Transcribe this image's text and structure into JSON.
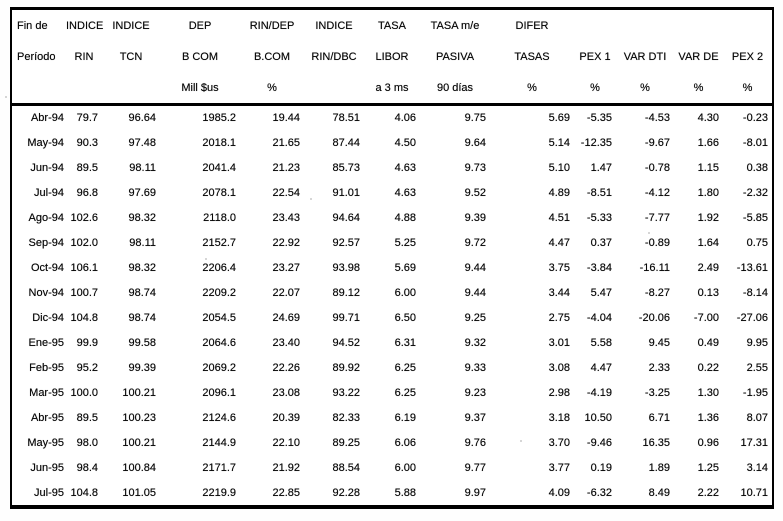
{
  "table": {
    "header": {
      "columns": [
        {
          "l1": "Fin de",
          "l2": "Período",
          "l3": ""
        },
        {
          "l1": "INDICE",
          "l2": "RIN",
          "l3": ""
        },
        {
          "l1": "INDICE",
          "l2": "TCN",
          "l3": ""
        },
        {
          "l1": "DEP",
          "l2": "B COM",
          "l3": "Mill $us"
        },
        {
          "l1": "RIN/DEP",
          "l2": "B.COM",
          "l3": "%"
        },
        {
          "l1": "INDICE",
          "l2": "RIN/DBC",
          "l3": ""
        },
        {
          "l1": "TASA",
          "l2": "LIBOR",
          "l3": "a 3 ms"
        },
        {
          "l1": "TASA m/e",
          "l2": "PASIVA",
          "l3": "90 días"
        },
        {
          "l1": "DIFER",
          "l2": "TASAS",
          "l3": "%"
        },
        {
          "l1": "",
          "l2": "PEX 1",
          "l3": "%"
        },
        {
          "l1": "",
          "l2": "VAR DTI",
          "l3": "%"
        },
        {
          "l1": "",
          "l2": "VAR DE",
          "l3": "%"
        },
        {
          "l1": "",
          "l2": "PEX 2",
          "l3": "%"
        }
      ]
    },
    "rows": [
      {
        "period": "Abr-94",
        "values": [
          "79.7",
          "96.64",
          "1985.2",
          "19.44",
          "78.51",
          "4.06",
          "9.75",
          "5.69",
          "-5.35",
          "-4.53",
          "4.30",
          "-0.23"
        ]
      },
      {
        "period": "May-94",
        "values": [
          "90.3",
          "97.48",
          "2018.1",
          "21.65",
          "87.44",
          "4.50",
          "9.64",
          "5.14",
          "-12.35",
          "-9.67",
          "1.66",
          "-8.01"
        ]
      },
      {
        "period": "Jun-94",
        "values": [
          "89.5",
          "98.11",
          "2041.4",
          "21.23",
          "85.73",
          "4.63",
          "9.73",
          "5.10",
          "1.47",
          "-0.78",
          "1.15",
          "0.38"
        ]
      },
      {
        "period": "Jul-94",
        "values": [
          "96.8",
          "97.69",
          "2078.1",
          "22.54",
          "91.01",
          "4.63",
          "9.52",
          "4.89",
          "-8.51",
          "-4.12",
          "1.80",
          "-2.32"
        ]
      },
      {
        "period": "Ago-94",
        "values": [
          "102.6",
          "98.32",
          "2118.0",
          "23.43",
          "94.64",
          "4.88",
          "9.39",
          "4.51",
          "-5.33",
          "-7.77",
          "1.92",
          "-5.85"
        ]
      },
      {
        "period": "Sep-94",
        "values": [
          "102.0",
          "98.11",
          "2152.7",
          "22.92",
          "92.57",
          "5.25",
          "9.72",
          "4.47",
          "0.37",
          "-0.89",
          "1.64",
          "0.75"
        ]
      },
      {
        "period": "Oct-94",
        "values": [
          "106.1",
          "98.32",
          "2206.4",
          "23.27",
          "93.98",
          "5.69",
          "9.44",
          "3.75",
          "-3.84",
          "-16.11",
          "2.49",
          "-13.61"
        ]
      },
      {
        "period": "Nov-94",
        "values": [
          "100.7",
          "98.74",
          "2209.2",
          "22.07",
          "89.12",
          "6.00",
          "9.44",
          "3.44",
          "5.47",
          "-8.27",
          "0.13",
          "-8.14"
        ]
      },
      {
        "period": "Dic-94",
        "values": [
          "104.8",
          "98.74",
          "2054.5",
          "24.69",
          "99.71",
          "6.50",
          "9.25",
          "2.75",
          "-4.04",
          "-20.06",
          "-7.00",
          "-27.06"
        ]
      },
      {
        "period": "Ene-95",
        "values": [
          "99.9",
          "99.58",
          "2064.6",
          "23.40",
          "94.52",
          "6.31",
          "9.32",
          "3.01",
          "5.58",
          "9.45",
          "0.49",
          "9.95"
        ]
      },
      {
        "period": "Feb-95",
        "values": [
          "95.2",
          "99.39",
          "2069.2",
          "22.26",
          "89.92",
          "6.25",
          "9.33",
          "3.08",
          "4.47",
          "2.33",
          "0.22",
          "2.55"
        ]
      },
      {
        "period": "Mar-95",
        "values": [
          "100.0",
          "100.21",
          "2096.1",
          "23.08",
          "93.22",
          "6.25",
          "9.23",
          "2.98",
          "-4.19",
          "-3.25",
          "1.30",
          "-1.95"
        ]
      },
      {
        "period": "Abr-95",
        "values": [
          "89.5",
          "100.23",
          "2124.6",
          "20.39",
          "82.33",
          "6.19",
          "9.37",
          "3.18",
          "10.50",
          "6.71",
          "1.36",
          "8.07"
        ]
      },
      {
        "period": "May-95",
        "values": [
          "98.0",
          "100.21",
          "2144.9",
          "22.10",
          "89.25",
          "6.06",
          "9.76",
          "3.70",
          "-9.46",
          "16.35",
          "0.96",
          "17.31"
        ]
      },
      {
        "period": "Jun-95",
        "values": [
          "98.4",
          "100.84",
          "2171.7",
          "21.92",
          "88.54",
          "6.00",
          "9.77",
          "3.77",
          "0.19",
          "1.89",
          "1.25",
          "3.14"
        ]
      },
      {
        "period": "Jul-95",
        "values": [
          "104.8",
          "101.05",
          "2219.9",
          "22.85",
          "92.28",
          "5.88",
          "9.97",
          "4.09",
          "-6.32",
          "8.49",
          "2.22",
          "10.71"
        ]
      }
    ]
  }
}
